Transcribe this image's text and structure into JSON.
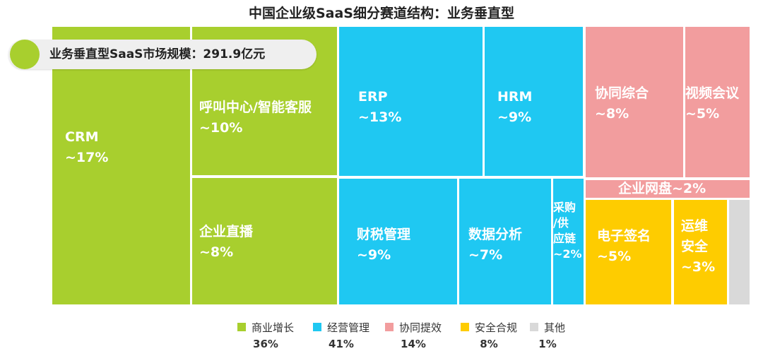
{
  "title": "中国企业级SaaS细分赛道结构：业务垂直型",
  "badge_text": "业务垂直型SaaS市场规模：291.9亿元",
  "colors": {
    "commerce": "#a8cf2e",
    "operations": "#1fc8f2",
    "collaboration": "#f29d9e",
    "security": "#fecc00",
    "other": "#d9d9d9"
  },
  "chart_data": {
    "type": "treemap",
    "title": "中国企业级SaaS细分赛道结构：业务垂直型",
    "total": "291.9亿元",
    "cells": [
      {
        "id": "crm",
        "group": "commerce",
        "name": "CRM",
        "value": "~17%"
      },
      {
        "id": "callcenter",
        "group": "commerce",
        "name": "呼叫中心/智能客服",
        "value": "~10%"
      },
      {
        "id": "live",
        "group": "commerce",
        "name": "企业直播",
        "value": "~8%"
      },
      {
        "id": "erp",
        "group": "operations",
        "name": "ERP",
        "value": "~13%"
      },
      {
        "id": "hrm",
        "group": "operations",
        "name": "HRM",
        "value": "~9%"
      },
      {
        "id": "tax",
        "group": "operations",
        "name": "财税管理",
        "value": "~9%"
      },
      {
        "id": "analytics",
        "group": "operations",
        "name": "数据分析",
        "value": "~7%"
      },
      {
        "id": "procure",
        "group": "operations",
        "name": "采购/供应链",
        "value": "~2%"
      },
      {
        "id": "collab",
        "group": "collaboration",
        "name": "协同综合",
        "value": "~8%"
      },
      {
        "id": "video",
        "group": "collaboration",
        "name": "视频会议",
        "value": "~5%"
      },
      {
        "id": "netdisk",
        "group": "collaboration",
        "name": "企业网盘",
        "value": "~2%"
      },
      {
        "id": "esign",
        "group": "security",
        "name": "电子签名",
        "value": "~5%"
      },
      {
        "id": "ops",
        "group": "security",
        "name": "运维安全",
        "value": "~3%"
      },
      {
        "id": "other",
        "group": "other",
        "name": "",
        "value": ""
      }
    ],
    "legend": [
      {
        "name": "商业增长",
        "group": "commerce",
        "pct": "36%"
      },
      {
        "name": "经营管理",
        "group": "operations",
        "pct": "41%"
      },
      {
        "name": "协同提效",
        "group": "collaboration",
        "pct": "14%"
      },
      {
        "name": "安全合规",
        "group": "security",
        "pct": "8%"
      },
      {
        "name": "其他",
        "group": "other",
        "pct": "1%"
      }
    ]
  }
}
